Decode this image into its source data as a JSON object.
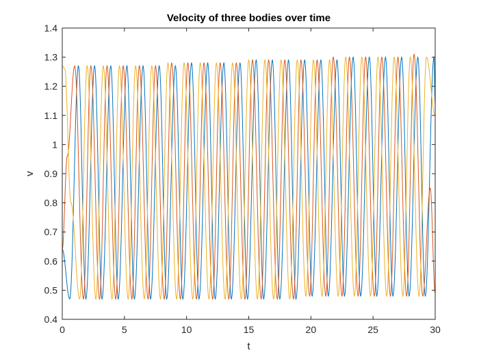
{
  "chart_data": {
    "type": "line",
    "title": "Velocity of three bodies over time",
    "xlabel": "t",
    "ylabel": "v",
    "xlim": [
      0,
      30
    ],
    "ylim": [
      0.4,
      1.4
    ],
    "xticks": [
      0,
      5,
      10,
      15,
      20,
      25,
      30
    ],
    "xtick_labels": [
      "0",
      "5",
      "10",
      "15",
      "20",
      "25",
      "30"
    ],
    "yticks": [
      0.4,
      0.5,
      0.6,
      0.7,
      0.8,
      0.9,
      1.0,
      1.1,
      1.2,
      1.3,
      1.4
    ],
    "ytick_labels": [
      "0.4",
      "0.5",
      "0.6",
      "0.7",
      "0.8",
      "0.9",
      "1",
      "1.1",
      "1.2",
      "1.3",
      "1.4"
    ],
    "grid": false,
    "legend": "none",
    "series": [
      {
        "color": "#0072BD",
        "x": [
          0,
          0.6,
          1.3,
          1.9,
          2.6,
          3.2,
          3.9,
          4.5,
          5.2,
          5.8,
          6.5,
          7.1,
          7.8,
          8.4,
          9.1,
          9.7,
          10.4,
          11.0,
          11.7,
          12.3,
          13.0,
          13.6,
          14.3,
          14.9,
          15.6,
          16.2,
          16.9,
          17.5,
          18.2,
          18.8,
          19.5,
          20.1,
          20.8,
          21.4,
          22.1,
          22.7,
          23.4,
          24.0,
          24.7,
          25.3,
          26.0,
          26.6,
          27.3,
          27.9,
          28.6,
          29.2,
          29.9,
          30.0
        ],
        "y": [
          0.64,
          0.47,
          1.27,
          0.47,
          1.27,
          0.47,
          1.27,
          0.47,
          1.27,
          0.47,
          1.27,
          0.47,
          1.27,
          0.47,
          1.27,
          0.47,
          1.28,
          0.47,
          1.28,
          0.47,
          1.28,
          0.47,
          1.28,
          0.47,
          1.29,
          0.47,
          1.29,
          0.47,
          1.29,
          0.47,
          1.29,
          0.48,
          1.29,
          0.48,
          1.29,
          0.48,
          1.3,
          0.48,
          1.3,
          0.48,
          1.3,
          0.48,
          1.3,
          0.48,
          1.3,
          0.48,
          1.3,
          1.14
        ]
      },
      {
        "color": "#D95319",
        "x": [
          0,
          0.4,
          1.0,
          1.7,
          2.3,
          3.0,
          3.6,
          4.3,
          4.9,
          5.6,
          6.2,
          6.9,
          7.5,
          8.2,
          8.8,
          9.5,
          10.1,
          10.8,
          11.4,
          12.1,
          12.7,
          13.4,
          14.0,
          14.7,
          15.3,
          16.0,
          16.6,
          17.3,
          17.9,
          18.6,
          19.2,
          19.9,
          20.5,
          21.2,
          21.8,
          22.5,
          23.1,
          23.8,
          24.4,
          25.1,
          25.7,
          26.4,
          27.0,
          27.7,
          28.3,
          29.0,
          29.6,
          30.0
        ],
        "y": [
          0.64,
          0.96,
          1.27,
          0.47,
          1.27,
          0.47,
          1.27,
          0.47,
          1.27,
          0.47,
          1.27,
          0.47,
          1.27,
          0.47,
          1.28,
          0.47,
          1.28,
          0.47,
          1.28,
          0.47,
          1.28,
          0.47,
          1.28,
          0.47,
          1.29,
          0.47,
          1.29,
          0.47,
          1.29,
          0.47,
          1.29,
          0.48,
          1.29,
          0.48,
          1.3,
          0.48,
          1.3,
          0.48,
          1.3,
          0.48,
          1.3,
          0.48,
          1.3,
          0.48,
          1.31,
          0.48,
          0.85,
          0.49
        ]
      },
      {
        "color": "#EDB120",
        "x": [
          0,
          0.2,
          0.7,
          1.4,
          2.0,
          2.7,
          3.3,
          4.0,
          4.6,
          5.3,
          5.9,
          6.6,
          7.2,
          7.9,
          8.5,
          9.2,
          9.8,
          10.5,
          11.1,
          11.8,
          12.4,
          13.1,
          13.7,
          14.4,
          15.0,
          15.7,
          16.3,
          17.0,
          17.6,
          18.3,
          18.9,
          19.6,
          20.2,
          20.9,
          21.5,
          22.2,
          22.8,
          23.5,
          24.1,
          24.8,
          25.4,
          26.1,
          26.7,
          27.4,
          28.0,
          28.7,
          29.3,
          30.0
        ],
        "y": [
          1.27,
          1.26,
          0.8,
          0.47,
          1.27,
          0.47,
          1.27,
          0.47,
          1.27,
          0.47,
          1.27,
          0.47,
          1.27,
          0.47,
          1.28,
          0.47,
          1.28,
          0.47,
          1.28,
          0.47,
          1.28,
          0.47,
          1.28,
          0.47,
          1.29,
          0.47,
          1.29,
          0.47,
          1.29,
          0.47,
          1.29,
          0.48,
          1.29,
          0.48,
          1.29,
          0.48,
          1.3,
          0.48,
          1.3,
          0.48,
          1.3,
          0.48,
          1.3,
          0.48,
          1.3,
          0.48,
          1.3,
          1.1
        ]
      }
    ]
  }
}
